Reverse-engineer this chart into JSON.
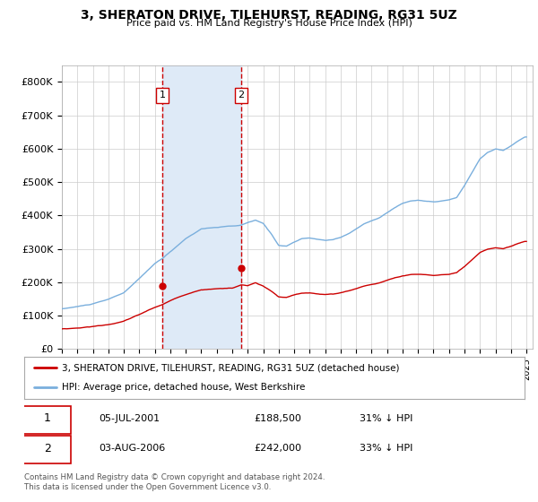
{
  "title": "3, SHERATON DRIVE, TILEHURST, READING, RG31 5UZ",
  "subtitle": "Price paid vs. HM Land Registry's House Price Index (HPI)",
  "ylabel_ticks": [
    "£0",
    "£100K",
    "£200K",
    "£300K",
    "£400K",
    "£500K",
    "£600K",
    "£700K",
    "£800K"
  ],
  "ytick_values": [
    0,
    100000,
    200000,
    300000,
    400000,
    500000,
    600000,
    700000,
    800000
  ],
  "ylim": [
    0,
    850000
  ],
  "xlim_start": 1995.4,
  "xlim_end": 2025.4,
  "xtick_years": [
    1995,
    1996,
    1997,
    1998,
    1999,
    2000,
    2001,
    2002,
    2003,
    2004,
    2005,
    2006,
    2007,
    2008,
    2009,
    2010,
    2011,
    2012,
    2013,
    2014,
    2015,
    2016,
    2017,
    2018,
    2019,
    2020,
    2021,
    2022,
    2023,
    2024,
    2025
  ],
  "sale1_x": 2001.5,
  "sale1_y": 188500,
  "sale1_label": "1",
  "sale1_date": "05-JUL-2001",
  "sale1_price": "£188,500",
  "sale1_hpi": "31% ↓ HPI",
  "sale2_x": 2006.58,
  "sale2_y": 242000,
  "sale2_label": "2",
  "sale2_date": "03-AUG-2006",
  "sale2_price": "£242,000",
  "sale2_hpi": "33% ↓ HPI",
  "shade_start": 2001.5,
  "shade_end": 2006.58,
  "shade_color": "#deeaf7",
  "vline_color": "#cc0000",
  "hpi_color": "#7aafdd",
  "price_color": "#cc0000",
  "legend_label_price": "3, SHERATON DRIVE, TILEHURST, READING, RG31 5UZ (detached house)",
  "legend_label_hpi": "HPI: Average price, detached house, West Berkshire",
  "footer": "Contains HM Land Registry data © Crown copyright and database right 2024.\nThis data is licensed under the Open Government Licence v3.0."
}
